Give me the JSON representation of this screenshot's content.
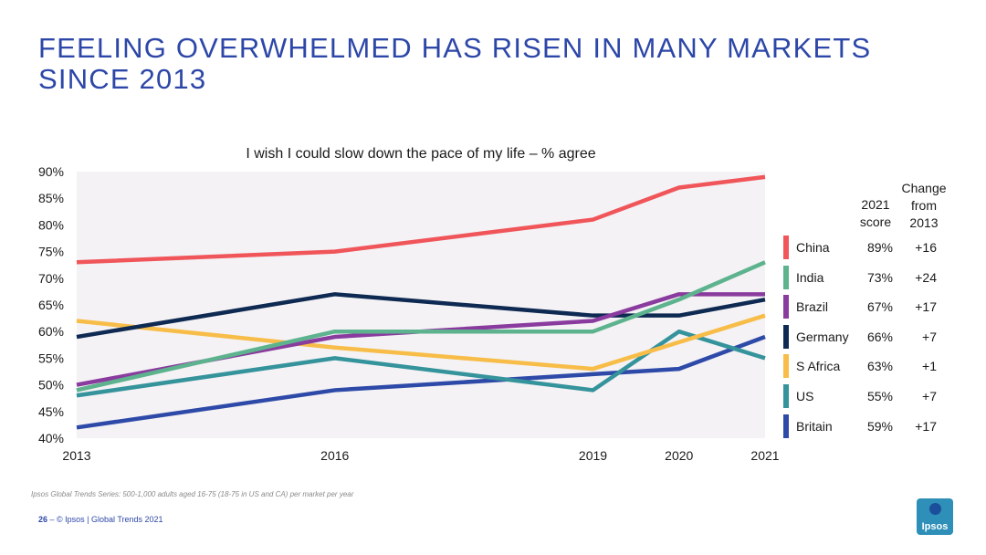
{
  "title_lines": [
    "FEELING OVERWHELMED HAS RISEN IN MANY MARKETS",
    "SINCE 2013"
  ],
  "chart_data": {
    "type": "line",
    "title": "I wish I could slow down the pace of my life – % agree",
    "xlabel": "",
    "ylabel": "",
    "x": [
      2013,
      2016,
      2019,
      2020,
      2021
    ],
    "x_tick_labels": [
      "2013",
      "2016",
      "2019",
      "2020",
      "2021"
    ],
    "ylim": [
      40,
      90
    ],
    "y_ticks": [
      40,
      45,
      50,
      55,
      60,
      65,
      70,
      75,
      80,
      85,
      90
    ],
    "y_tick_labels": [
      "40%",
      "45%",
      "50%",
      "55%",
      "60%",
      "65%",
      "70%",
      "75%",
      "80%",
      "85%",
      "90%"
    ],
    "background": "#f4f2f5",
    "series": [
      {
        "name": "China",
        "color": "#f0555a",
        "values": [
          73,
          75,
          81,
          87,
          89
        ]
      },
      {
        "name": "India",
        "color": "#5db38d",
        "values": [
          49,
          60,
          60,
          66,
          73
        ]
      },
      {
        "name": "Brazil",
        "color": "#8a3b9e",
        "values": [
          50,
          59,
          62,
          67,
          67
        ]
      },
      {
        "name": "Germany",
        "color": "#0e2a52",
        "values": [
          59,
          67,
          63,
          63,
          66
        ]
      },
      {
        "name": "S Africa",
        "color": "#f7bd48",
        "values": [
          62,
          57,
          53,
          58,
          63
        ]
      },
      {
        "name": "US",
        "color": "#35939b",
        "values": [
          48,
          55,
          49,
          60,
          55
        ]
      },
      {
        "name": "Britain",
        "color": "#2e4aa8",
        "values": [
          42,
          49,
          52,
          53,
          59
        ]
      }
    ]
  },
  "legend": {
    "header_score": [
      "2021",
      "score"
    ],
    "header_change": [
      "Change",
      "from",
      "2013"
    ],
    "rows": [
      {
        "name": "China",
        "score": "89%",
        "change": "+16",
        "color": "#f0555a"
      },
      {
        "name": "India",
        "score": "73%",
        "change": "+24",
        "color": "#5db38d"
      },
      {
        "name": "Brazil",
        "score": "67%",
        "change": "+17",
        "color": "#8a3b9e"
      },
      {
        "name": "Germany",
        "score": "66%",
        "change": "+7",
        "color": "#0e2a52"
      },
      {
        "name": "S Africa",
        "score": "63%",
        "change": "+1",
        "color": "#f7bd48"
      },
      {
        "name": "US",
        "score": "55%",
        "change": "+7",
        "color": "#35939b"
      },
      {
        "name": "Britain",
        "score": "59%",
        "change": "+17",
        "color": "#2e4aa8"
      }
    ]
  },
  "source": "Ipsos Global Trends Series: 500-1,000 adults aged 16-75 (18-75 in US and CA) per market per year",
  "footer": {
    "page": "26",
    "sep": " – ",
    "text": "© Ipsos | Global Trends 2021"
  },
  "logo_text": "Ipsos"
}
